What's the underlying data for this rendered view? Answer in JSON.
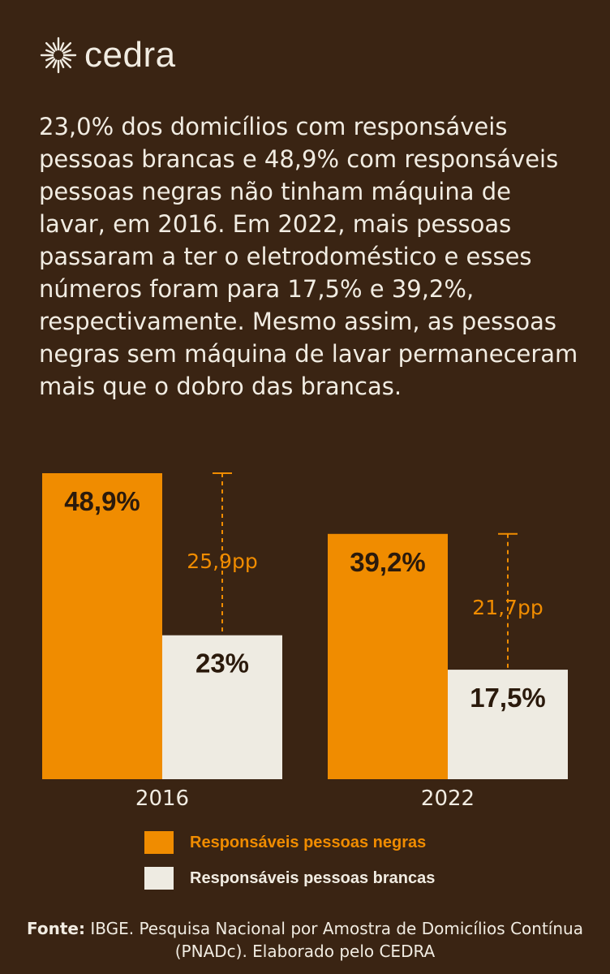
{
  "brand": {
    "name": "cedra",
    "logo_icon": "sunburst-icon"
  },
  "intro_text": "23,0% dos domicílios com responsáveis pessoas brancas e 48,9% com responsáveis pessoas negras não tinham máquina de lavar, em 2016. Em 2022, mais pessoas passaram a ter o eletrodoméstico e esses números foram para 17,5% e 39,2%, respectivamente. Mesmo assim, as pessoas negras sem máquina de lavar permaneceram mais que o dobro das brancas.",
  "colors": {
    "background": "#3a2413",
    "negras": "#f08c00",
    "brancas": "#eeebe2",
    "text_light": "#f1ece2",
    "text_dark": "#2b1a0c"
  },
  "chart_data": {
    "type": "bar",
    "categories": [
      "2016",
      "2022"
    ],
    "series": [
      {
        "name": "Responsáveis pessoas negras",
        "values": [
          48.9,
          39.2
        ],
        "labels": [
          "48,9%",
          "39,2%"
        ]
      },
      {
        "name": "Responsáveis pessoas brancas",
        "values": [
          23.0,
          17.5
        ],
        "labels": [
          "23%",
          "17,5%"
        ]
      }
    ],
    "differences": [
      {
        "category": "2016",
        "value": 25.9,
        "label": "25,9pp"
      },
      {
        "category": "2022",
        "value": 21.7,
        "label": "21,7pp"
      }
    ],
    "ylim": [
      0,
      48.9
    ],
    "grid": false,
    "legend_position": "bottom"
  },
  "legend": {
    "negras": "Responsáveis pessoas negras",
    "brancas": "Responsáveis pessoas brancas"
  },
  "footer": {
    "source_label": "Fonte:",
    "source_text": " IBGE. Pesquisa Nacional por Amostra de Domicílios Contínua (PNADc). Elaborado pelo CEDRA"
  }
}
